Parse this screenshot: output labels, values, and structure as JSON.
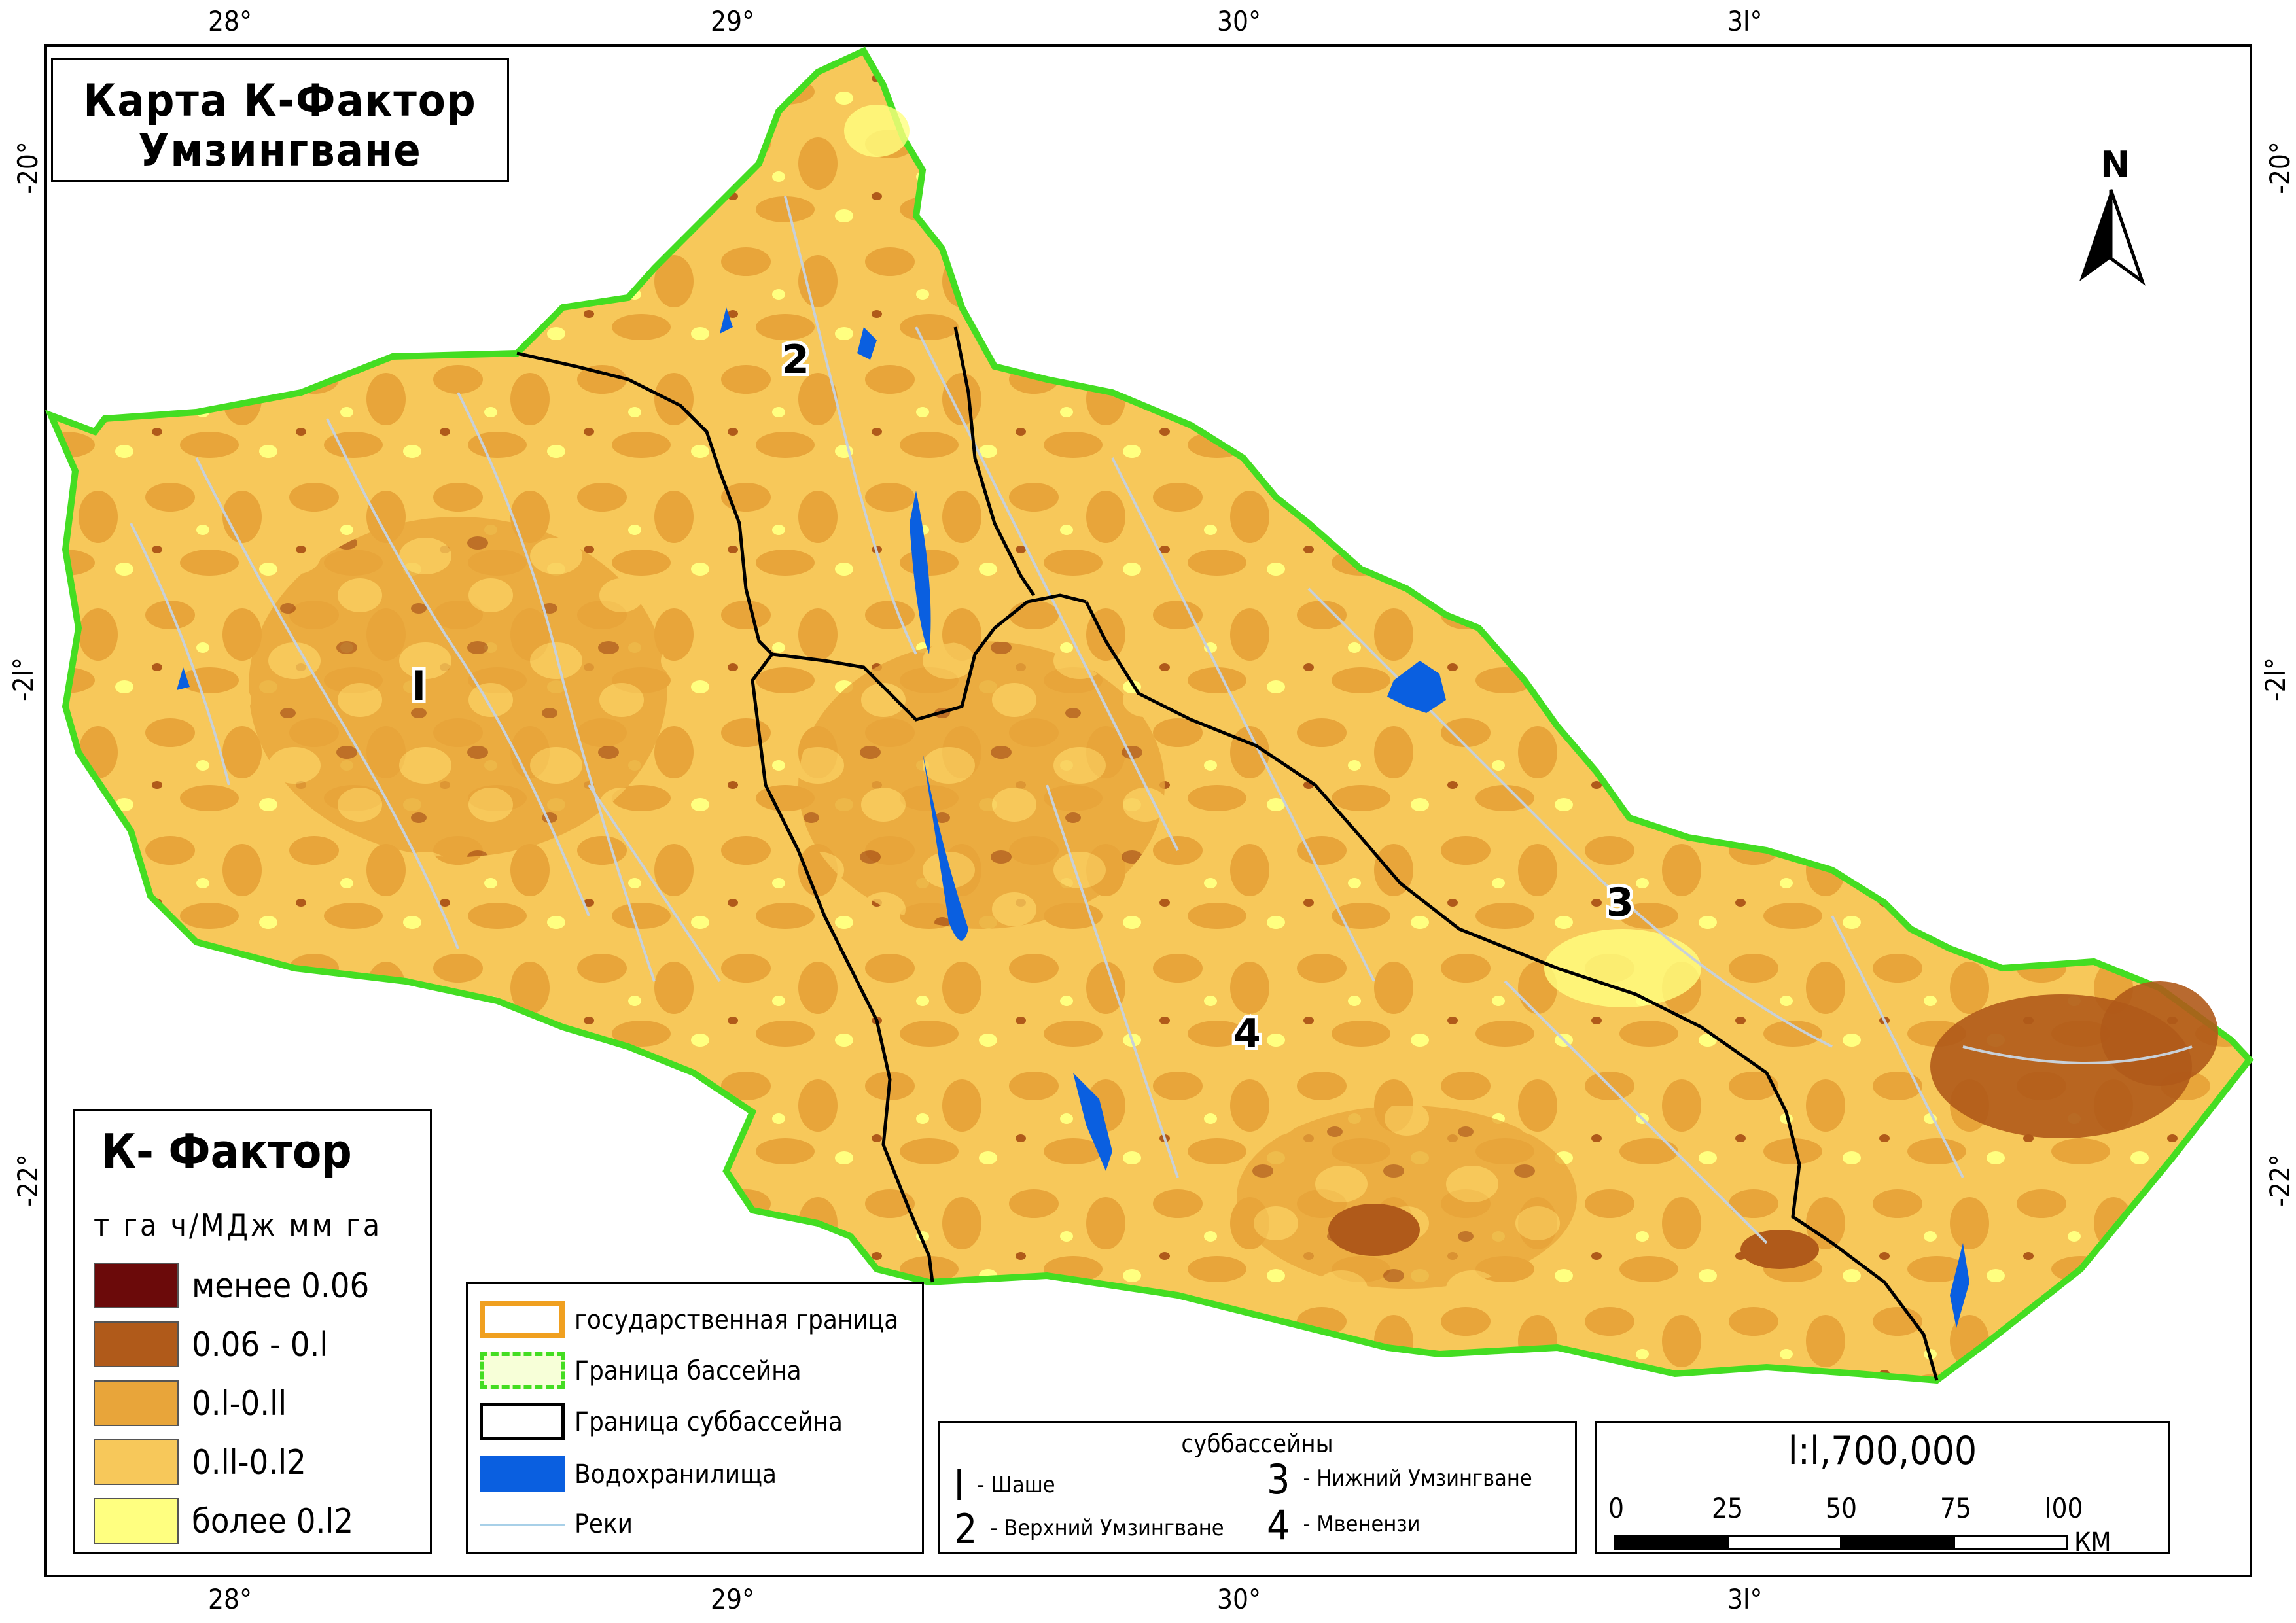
{
  "map": {
    "title_line1": "Карта К-Фактор",
    "title_line2": "Умзингване",
    "lon_ticks": [
      "28°",
      "29°",
      "30°",
      "3l°"
    ],
    "lat_ticks": [
      "-20°",
      "-2l°",
      "-22°"
    ],
    "north_label": "N",
    "subbasin_labels": [
      "l",
      "2",
      "3",
      "4"
    ]
  },
  "k_legend": {
    "title": "К-  Фактор",
    "units": "т га ч/МДж мм га",
    "classes": [
      {
        "label": "менее 0.06",
        "color": "#6b0a0a"
      },
      {
        "label": "0.06  -  0.l",
        "color": "#b05a1a"
      },
      {
        "label": "0.l-0.ll",
        "color": "#e8a53a"
      },
      {
        "label": "0.ll-0.l2",
        "color": "#f7c85a"
      },
      {
        "label": "более 0.l2",
        "color": "#ffff80"
      }
    ]
  },
  "symbol_legend": {
    "items": [
      {
        "label": "государственная граница",
        "type": "state"
      },
      {
        "label": "Граница бассейна",
        "type": "basin"
      },
      {
        "label": "Граница суббассейна",
        "type": "subbasin"
      },
      {
        "label": "Водохранилища",
        "type": "reservoir"
      },
      {
        "label": "Реки",
        "type": "river"
      }
    ]
  },
  "subbasin_legend": {
    "title": "суббассейны",
    "items": [
      {
        "num": "l",
        "label": "- Шаше"
      },
      {
        "num": "2",
        "label": "- Верхний Умзингване"
      },
      {
        "num": "3",
        "label": "- Нижний Умзингване"
      },
      {
        "num": "4",
        "label": "- Мвенензи"
      }
    ]
  },
  "scale": {
    "ratio": "l:l,700,000",
    "labels": [
      "0",
      "25",
      "50",
      "75",
      "l00"
    ],
    "unit": "КМ"
  },
  "colors": {
    "state_border": "#f0a020",
    "basin_border": "#44dd22",
    "reservoir": "#0a5fe0",
    "river": "#c8d0d8",
    "subbasin_border": "#000000"
  }
}
